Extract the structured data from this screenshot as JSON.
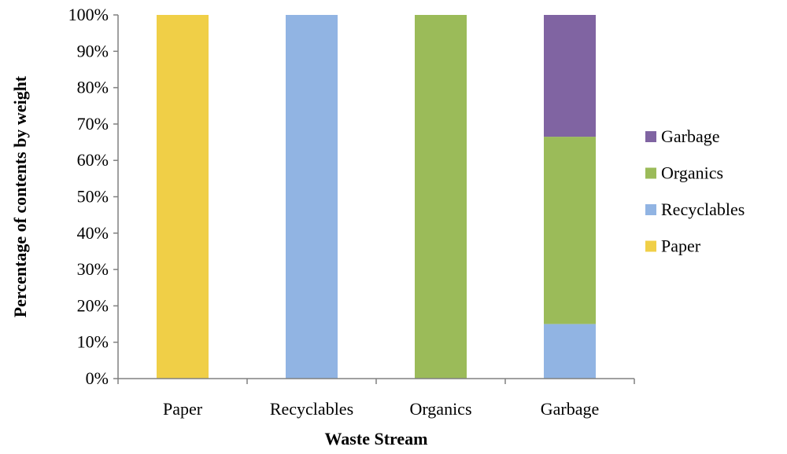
{
  "chart_data": {
    "type": "bar",
    "stacked": true,
    "categories": [
      "Paper",
      "Recyclables",
      "Organics",
      "Garbage"
    ],
    "series": [
      {
        "name": "Paper",
        "color": "#F0CF47",
        "values": [
          100,
          0,
          0,
          0
        ]
      },
      {
        "name": "Recyclables",
        "color": "#91B4E3",
        "values": [
          0,
          100,
          0,
          15
        ]
      },
      {
        "name": "Organics",
        "color": "#9BBB59",
        "values": [
          0,
          0,
          100,
          51.5
        ]
      },
      {
        "name": "Garbage",
        "color": "#8064A2",
        "values": [
          0,
          0,
          0,
          33.5
        ]
      }
    ],
    "xlabel": "Waste Stream",
    "ylabel": "Percentage  of contents by weight",
    "ylim": [
      0,
      100
    ],
    "yticks": [
      "0%",
      "10%",
      "20%",
      "30%",
      "40%",
      "50%",
      "60%",
      "70%",
      "80%",
      "90%",
      "100%"
    ],
    "grid": false,
    "legend_position": "right",
    "legend_order": [
      "Garbage",
      "Organics",
      "Recyclables",
      "Paper"
    ]
  }
}
